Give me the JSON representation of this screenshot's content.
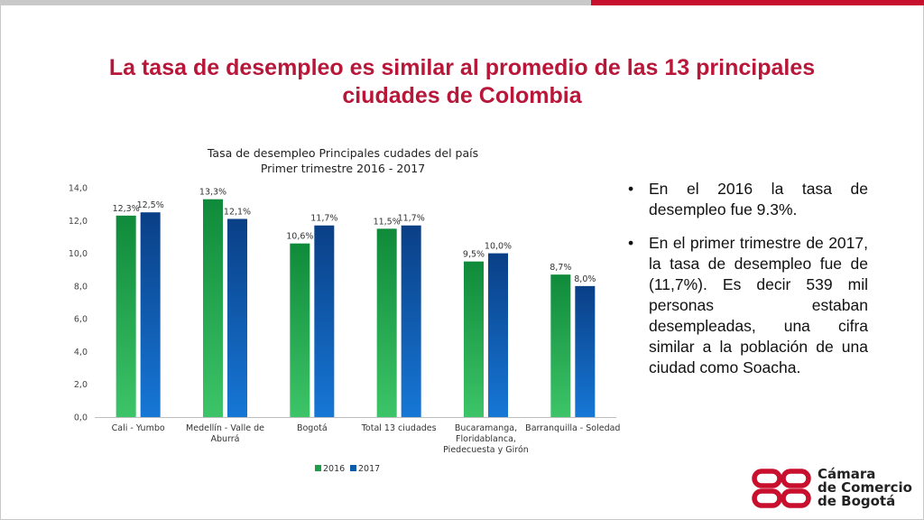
{
  "slide": {
    "title_line1": "La tasa de desempleo es similar al  promedio de las 13 principales",
    "title_line2": "ciudades de Colombia",
    "bullets": [
      "En el 2016 la tasa de desempleo fue 9.3%.",
      "En el primer trimestre de 2017, la tasa de desempleo fue de (11,7%). Es decir 539 mil personas estaban desempleadas, una cifra similar a la población de una ciudad como Soacha."
    ],
    "bullet_symbol": "•",
    "logo": {
      "line1": "Cámara",
      "line2": "de Comercio",
      "line3": "de Bogotá",
      "color": "#c8102e"
    },
    "colors": {
      "title": "#b8173a",
      "accent_bar": "#c8102e"
    }
  },
  "chart_data": {
    "type": "bar",
    "title_line1": "Tasa de desempleo Principales cudades del país",
    "title_line2": "Primer trimestre 2016 - 2017",
    "categories": [
      [
        "Cali - Yumbo"
      ],
      [
        "Medellín - Valle de",
        "Aburrá"
      ],
      [
        "Bogotá"
      ],
      [
        "Total 13 ciudades"
      ],
      [
        "Bucaramanga,",
        "Floridablanca,",
        "Piedecuesta y Girón"
      ],
      [
        "Barranquilla - Soledad"
      ]
    ],
    "series": [
      {
        "name": "2016",
        "values": [
          12.3,
          13.3,
          10.6,
          11.5,
          9.5,
          8.7
        ],
        "labels": [
          "12,3%",
          "13,3%",
          "10,6%",
          "11,5%",
          "9,5%",
          "8,7%"
        ],
        "color": "#1e9e48"
      },
      {
        "name": "2017",
        "values": [
          12.5,
          12.1,
          11.7,
          11.7,
          10.0,
          8.0
        ],
        "labels": [
          "12,5%",
          "12,1%",
          "11,7%",
          "11,7%",
          "10,0%",
          "8,0%"
        ],
        "color": "#0b5ca8"
      }
    ],
    "ylim": [
      0,
      14
    ],
    "yticks": [
      0,
      2,
      4,
      6,
      8,
      10,
      12,
      14
    ],
    "ytick_labels": [
      "0,0",
      "2,0",
      "4,0",
      "6,0",
      "8,0",
      "10,0",
      "12,0",
      "14,0"
    ],
    "legend_position": "bottom",
    "grid": false
  }
}
